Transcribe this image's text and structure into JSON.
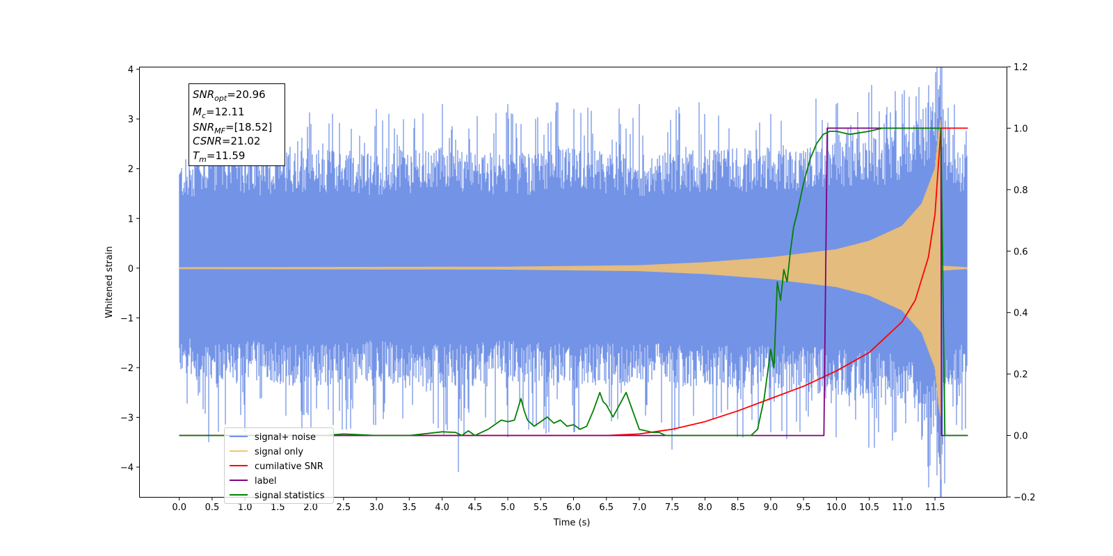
{
  "chart_data": {
    "type": "line",
    "title": "",
    "xlabel": "Time (s)",
    "ylabel": "Whitened strain",
    "y2label": "",
    "xlim": [
      -0.6,
      12.6
    ],
    "ylim": [
      -4.6,
      4.05
    ],
    "y2lim": [
      -0.2,
      1.2
    ],
    "x_ticks": [
      "0.0",
      "0.5",
      "1.0",
      "1.5",
      "2.0",
      "2.5",
      "3.0",
      "3.5",
      "4.0",
      "4.5",
      "5.0",
      "5.5",
      "6.0",
      "6.5",
      "7.0",
      "7.5",
      "8.0",
      "8.5",
      "9.0",
      "9.5",
      "10.0",
      "10.5",
      "11.0",
      "11.5"
    ],
    "y_ticks": [
      "4",
      "3",
      "2",
      "1",
      "0",
      "−1",
      "−2",
      "−3",
      "−4"
    ],
    "y2_ticks": [
      "1.2",
      "1.0",
      "0.8",
      "0.6",
      "0.4",
      "0.2",
      "0.0",
      "−0.2"
    ],
    "legend_position": "lower-left",
    "annotation": {
      "snr_opt": "=20.96",
      "mc": "=12.11",
      "snr_mf": "=[18.52]",
      "csnr": "=21.02",
      "tm": "=11.59"
    },
    "series": [
      {
        "name": "signal+ noise",
        "axis": "left",
        "color": "#7393e6",
        "t_range": [
          0.0,
          11.99
        ],
        "envelope": [
          [
            0,
            1.6
          ],
          [
            0.5,
            1.8
          ],
          [
            1.0,
            1.7
          ],
          [
            2.0,
            1.8
          ],
          [
            3.0,
            1.7
          ],
          [
            4.0,
            1.8
          ],
          [
            5.0,
            1.7
          ],
          [
            6.0,
            1.8
          ],
          [
            7.0,
            1.7
          ],
          [
            8.0,
            1.8
          ],
          [
            9.0,
            1.8
          ],
          [
            10.0,
            1.9
          ],
          [
            11.0,
            2.0
          ],
          [
            11.5,
            2.6
          ],
          [
            11.59,
            3.1
          ],
          [
            11.7,
            1.8
          ],
          [
            12.0,
            1.7
          ]
        ],
        "peak_max": [
          [
            0.5,
            3.0
          ],
          [
            2.0,
            2.9
          ],
          [
            3.0,
            3.2
          ],
          [
            4.0,
            3.3
          ],
          [
            5.0,
            3.3
          ],
          [
            6.0,
            3.2
          ],
          [
            7.0,
            3.3
          ],
          [
            8.0,
            3.1
          ],
          [
            9.0,
            3.1
          ],
          [
            10.0,
            3.3
          ],
          [
            11.0,
            3.5
          ],
          [
            11.4,
            3.68
          ],
          [
            11.55,
            3.6
          ]
        ],
        "peak_min": [
          [
            0.45,
            -3.5
          ],
          [
            1.0,
            -3.3
          ],
          [
            2.0,
            -3.2
          ],
          [
            4.25,
            -4.1
          ],
          [
            5.0,
            -3.4
          ],
          [
            6.0,
            -3.3
          ],
          [
            7.5,
            -3.65
          ],
          [
            9.0,
            -3.3
          ],
          [
            10.0,
            -3.4
          ],
          [
            11.3,
            -3.45
          ],
          [
            11.55,
            -3.55
          ]
        ]
      },
      {
        "name": "signal only",
        "axis": "left",
        "color": "#f7c36b",
        "amplitude": [
          [
            0,
            0.02
          ],
          [
            5.0,
            0.03
          ],
          [
            7.0,
            0.06
          ],
          [
            8.0,
            0.12
          ],
          [
            9.0,
            0.22
          ],
          [
            10.0,
            0.38
          ],
          [
            10.5,
            0.55
          ],
          [
            11.0,
            0.85
          ],
          [
            11.3,
            1.3
          ],
          [
            11.5,
            2.0
          ],
          [
            11.56,
            2.8
          ],
          [
            11.59,
            3.0
          ],
          [
            11.6,
            0.05
          ],
          [
            12.0,
            0.02
          ]
        ],
        "min_point": [
          11.59,
          -4.25
        ]
      },
      {
        "name": "cumilative SNR",
        "axis": "right",
        "color": "#ff0000",
        "x": [
          0.0,
          6.5,
          7.0,
          7.5,
          8.0,
          8.5,
          9.0,
          9.5,
          10.0,
          10.5,
          11.0,
          11.2,
          11.4,
          11.5,
          11.59,
          12.0
        ],
        "values": [
          0.0,
          0.0,
          0.005,
          0.02,
          0.045,
          0.08,
          0.12,
          0.16,
          0.21,
          0.27,
          0.37,
          0.44,
          0.58,
          0.72,
          1.0,
          1.0
        ]
      },
      {
        "name": "label",
        "axis": "right",
        "color": "#800080",
        "x": [
          0.0,
          9.81,
          9.86,
          11.59,
          11.6,
          12.0
        ],
        "values": [
          0.0,
          0.0,
          1.0,
          1.0,
          0.0,
          0.0
        ]
      },
      {
        "name": "signal statistics",
        "axis": "right",
        "color": "#008000",
        "x": [
          0.0,
          2.2,
          2.5,
          3.0,
          3.5,
          4.0,
          4.2,
          4.3,
          4.4,
          4.5,
          4.6,
          4.7,
          4.8,
          4.9,
          5.0,
          5.1,
          5.2,
          5.25,
          5.3,
          5.4,
          5.5,
          5.6,
          5.7,
          5.8,
          5.9,
          6.0,
          6.1,
          6.2,
          6.3,
          6.4,
          6.45,
          6.5,
          6.6,
          6.7,
          6.8,
          6.9,
          7.0,
          7.1,
          7.2,
          7.3,
          7.4,
          7.5,
          8.0,
          8.5,
          8.7,
          8.8,
          8.9,
          9.0,
          9.05,
          9.1,
          9.15,
          9.2,
          9.25,
          9.3,
          9.35,
          9.4,
          9.5,
          9.6,
          9.7,
          9.8,
          9.9,
          10.0,
          10.2,
          10.5,
          10.7,
          11.0,
          11.5,
          11.59,
          11.65,
          12.0
        ],
        "values": [
          0.0,
          0.0,
          0.005,
          0.0,
          0.0,
          0.012,
          0.01,
          0.0,
          0.015,
          0.0,
          0.01,
          0.02,
          0.035,
          0.05,
          0.045,
          0.05,
          0.12,
          0.08,
          0.05,
          0.03,
          0.045,
          0.06,
          0.04,
          0.05,
          0.03,
          0.035,
          0.02,
          0.03,
          0.08,
          0.14,
          0.11,
          0.1,
          0.06,
          0.1,
          0.14,
          0.08,
          0.02,
          0.015,
          0.01,
          0.01,
          0.0,
          0.0,
          0.0,
          0.0,
          0.0,
          0.02,
          0.12,
          0.28,
          0.22,
          0.5,
          0.44,
          0.54,
          0.5,
          0.6,
          0.68,
          0.72,
          0.82,
          0.9,
          0.95,
          0.98,
          0.99,
          0.99,
          0.98,
          0.99,
          1.0,
          1.0,
          1.0,
          1.0,
          0.0,
          0.0
        ]
      }
    ]
  }
}
